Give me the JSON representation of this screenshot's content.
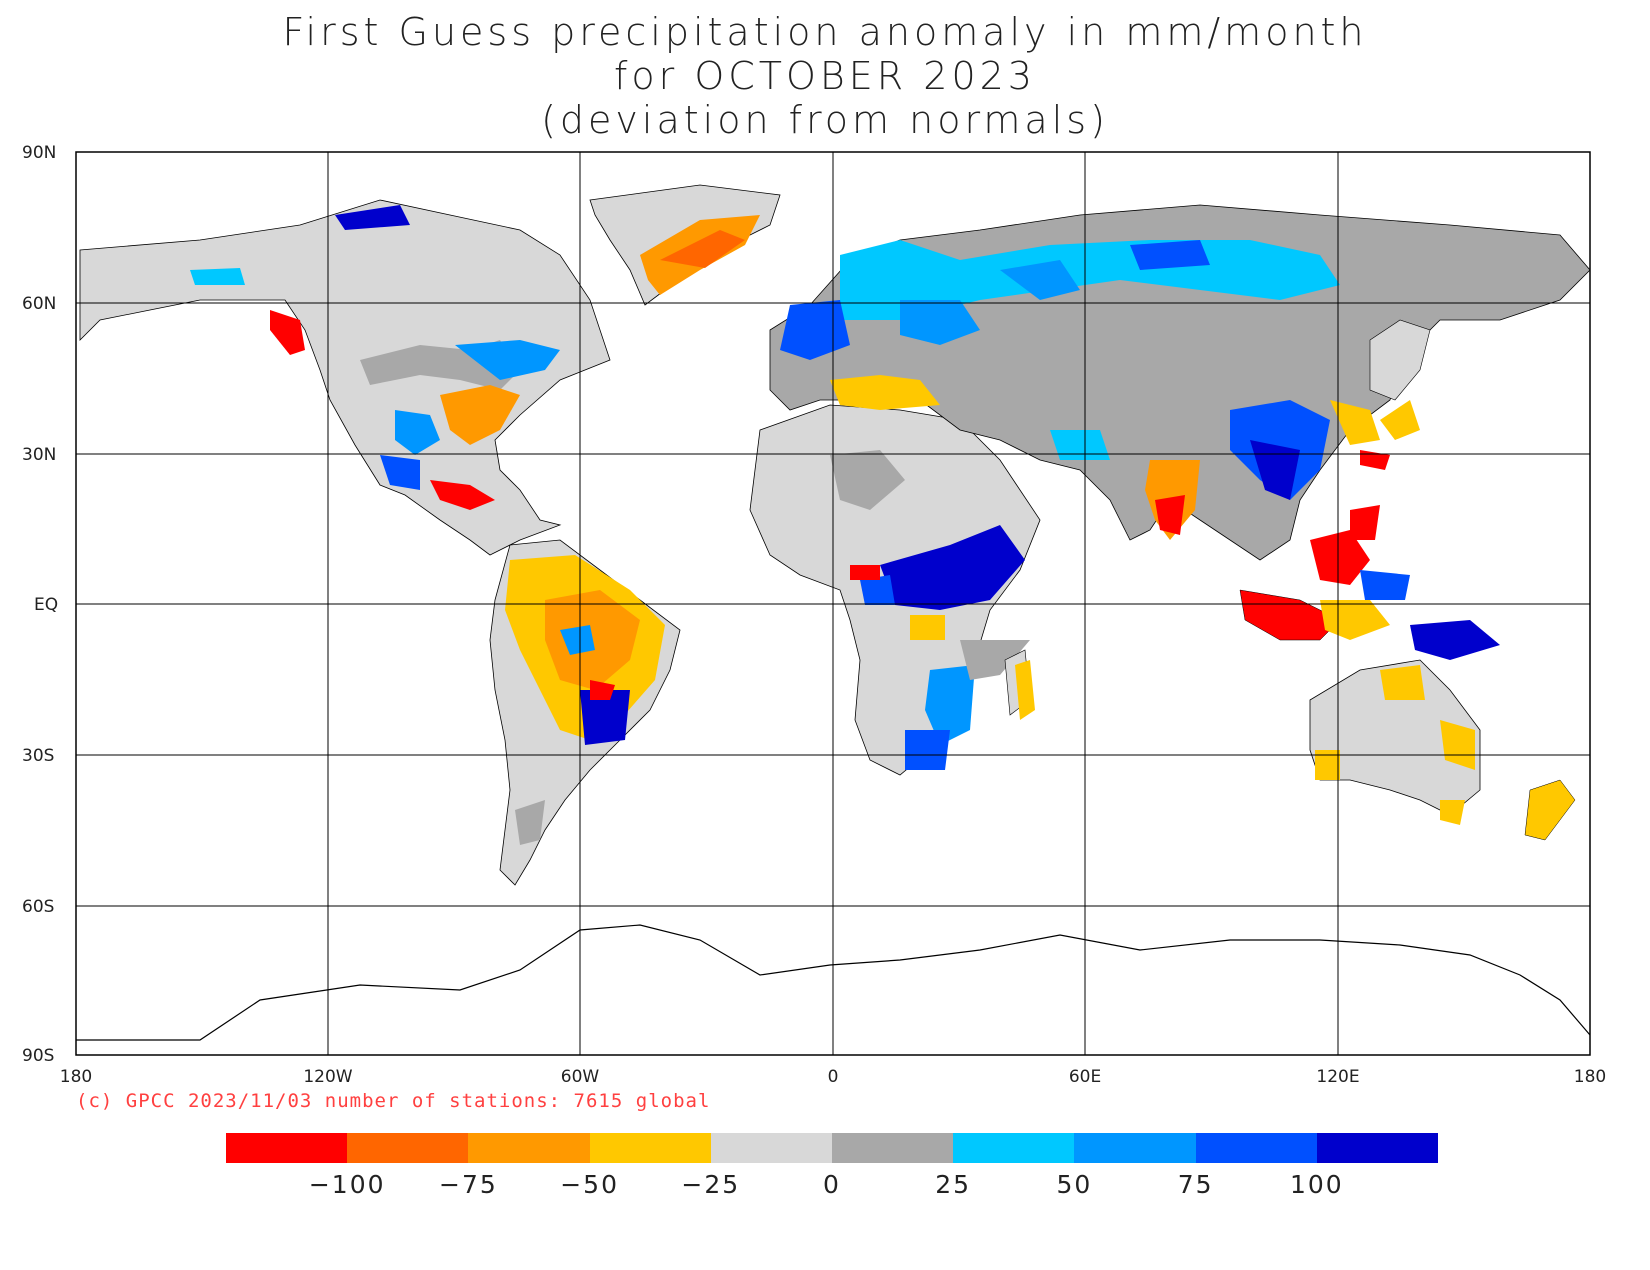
{
  "title": {
    "line1": "First Guess precipitation anomaly in mm/month",
    "line2": "for OCTOBER 2023",
    "line3": "(deviation from normals)"
  },
  "axes": {
    "lat_labels": [
      "90N",
      "60N",
      "30N",
      "EQ",
      "30S",
      "60S",
      "90S"
    ],
    "lon_labels": [
      "180",
      "120W",
      "60W",
      "0",
      "60E",
      "120E",
      "180"
    ]
  },
  "credit": "(c) GPCC 2023/11/03 number of stations: 7615 global",
  "legend": {
    "colors": [
      "#ff0000",
      "#ff6600",
      "#ff9900",
      "#ffc800",
      "#d8d8d8",
      "#a8a8a8",
      "#00c8ff",
      "#0096ff",
      "#0050ff",
      "#0000cc"
    ],
    "ticks": [
      "−100",
      "−75",
      "−50",
      "−25",
      "0",
      "25",
      "50",
      "75",
      "100"
    ]
  },
  "map_regions": [
    {
      "name": "north-america",
      "color": "#d8d8d8"
    },
    {
      "name": "greenland",
      "color": "#d8d8d8"
    },
    {
      "name": "south-america",
      "color": "#ffc800"
    },
    {
      "name": "africa",
      "color": "#d8d8d8"
    },
    {
      "name": "eurasia",
      "color": "#a8a8a8"
    },
    {
      "name": "australia",
      "color": "#d8d8d8"
    },
    {
      "name": "antarctica-outline",
      "color": "#ffffff"
    }
  ]
}
